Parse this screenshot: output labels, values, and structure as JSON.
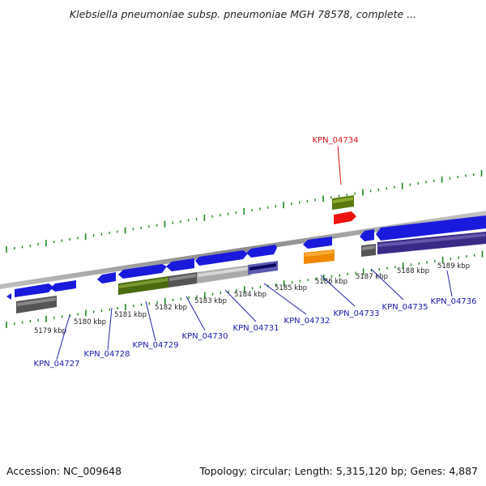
{
  "title": "Klebsiella pneumoniae subsp. pneumoniae MGH 78578, complete ...",
  "footer": {
    "accession": "Accession: NC_009648",
    "summary": "Topology: circular; Length: 5,315,120 bp; Genes: 4,887"
  },
  "ruler_labels": [
    "5179 kbp",
    "5180 kbp",
    "5181 kbp",
    "5182 kbp",
    "5183 kbp",
    "5184 kbp",
    "5185 kbp",
    "5186 kbp",
    "5187 kbp",
    "5188 kbp",
    "5189 kbp"
  ],
  "gene_labels": [
    "KPN_04727",
    "KPN_04728",
    "KPN_04729",
    "KPN_04730",
    "KPN_04731",
    "KPN_04732",
    "KPN_04733",
    "KPN_04735",
    "KPN_04736"
  ],
  "highlighted_gene": "KPN_04734",
  "colors": {
    "forward_cds": "#1a1add",
    "highlight_label": "#dd1111",
    "gene_label": "#1a1aaa",
    "tick": "#1a8a1a",
    "backbone": "#8a8a8a"
  }
}
